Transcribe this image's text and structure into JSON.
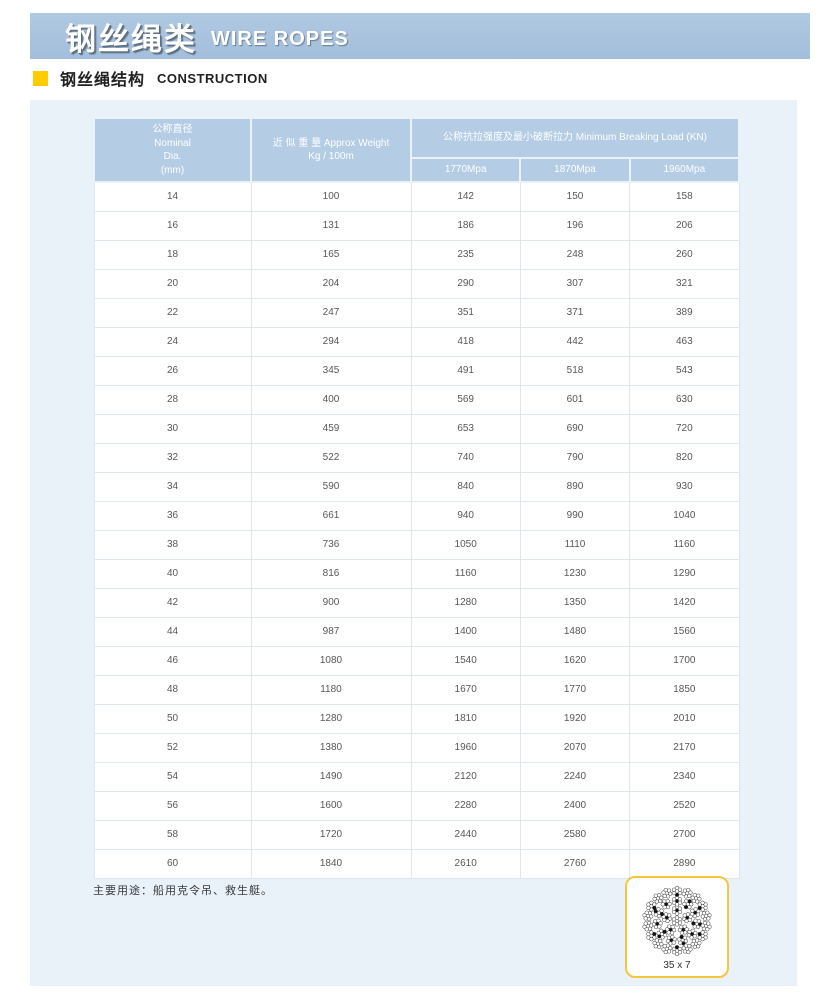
{
  "banner": {
    "title_zh": "钢丝绳类",
    "title_en": "WIRE ROPES"
  },
  "section": {
    "title_zh": "钢丝绳结构",
    "title_en": "CONSTRUCTION"
  },
  "colors": {
    "banner_blue": "#a7c1dc",
    "panel_blue": "#e9f1f9",
    "header_cell_blue": "#b4cce4",
    "accent_yellow": "#ffcc00",
    "rope_box_border": "#f4c63c"
  },
  "table": {
    "header": {
      "dia_zh": "公称直径",
      "dia_en1": "Nominal",
      "dia_en2": "Dia.",
      "dia_en3": "(mm)",
      "weight_line1": "近 似 重 量 Approx Weight",
      "weight_line2": "Kg / 100m",
      "breaking_load": "公称抗拉强度及最小破断拉力 Minimum Breaking Load (KN)",
      "grades": [
        "1770Mpa",
        "1870Mpa",
        "1960Mpa"
      ]
    },
    "rows": [
      [
        14,
        100,
        142,
        150,
        158
      ],
      [
        16,
        131,
        186,
        196,
        206
      ],
      [
        18,
        165,
        235,
        248,
        260
      ],
      [
        20,
        204,
        290,
        307,
        321
      ],
      [
        22,
        247,
        351,
        371,
        389
      ],
      [
        24,
        294,
        418,
        442,
        463
      ],
      [
        26,
        345,
        491,
        518,
        543
      ],
      [
        28,
        400,
        569,
        601,
        630
      ],
      [
        30,
        459,
        653,
        690,
        720
      ],
      [
        32,
        522,
        740,
        790,
        820
      ],
      [
        34,
        590,
        840,
        890,
        930
      ],
      [
        36,
        661,
        940,
        990,
        1040
      ],
      [
        38,
        736,
        1050,
        1110,
        1160
      ],
      [
        40,
        816,
        1160,
        1230,
        1290
      ],
      [
        42,
        900,
        1280,
        1350,
        1420
      ],
      [
        44,
        987,
        1400,
        1480,
        1560
      ],
      [
        46,
        1080,
        1540,
        1620,
        1700
      ],
      [
        48,
        1180,
        1670,
        1770,
        1850
      ],
      [
        50,
        1280,
        1810,
        1920,
        2010
      ],
      [
        52,
        1380,
        1960,
        2070,
        2170
      ],
      [
        54,
        1490,
        2120,
        2240,
        2340
      ],
      [
        56,
        1600,
        2280,
        2400,
        2520
      ],
      [
        58,
        1720,
        2440,
        2580,
        2700
      ],
      [
        60,
        1840,
        2610,
        2760,
        2890
      ]
    ]
  },
  "footer": {
    "usage_note": "主要用途：船用克令吊、救生艇。"
  },
  "rope_diagram": {
    "label": "35 x 7"
  }
}
